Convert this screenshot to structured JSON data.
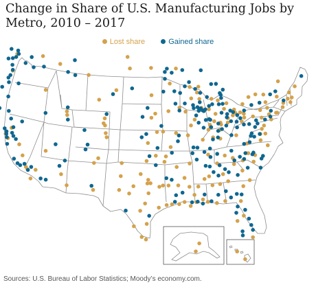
{
  "title": "Change in Share of U.S. Manufacturing Jobs by Metro, 2010 – 2017",
  "legend": {
    "lost_label": "Lost share",
    "gained_label": "Gained share"
  },
  "colors": {
    "lost": "#d4a24c",
    "gained": "#0f6790",
    "state_border": "#8c8c8c",
    "land": "#ffffff"
  },
  "source": "Sources: U.S. Bureau of Labor Statistics; Moody’s economy.com.",
  "map": {
    "projection": "albers-usa",
    "insets": [
      "alaska",
      "hawaii"
    ]
  },
  "metros": {
    "lost": [
      [
        -122.3,
        47.6
      ],
      [
        -122.7,
        45.5
      ],
      [
        -122.4,
        37.8
      ],
      [
        -121.9,
        37.3
      ],
      [
        -121.5,
        38.6
      ],
      [
        -119.8,
        36.7
      ],
      [
        -119.0,
        35.4
      ],
      [
        -118.2,
        34.05
      ],
      [
        -117.9,
        33.8
      ],
      [
        -117.2,
        32.7
      ],
      [
        -116.5,
        33.8
      ],
      [
        -115.1,
        36.2
      ],
      [
        -112.1,
        33.5
      ],
      [
        -111.0,
        32.2
      ],
      [
        -106.6,
        35.1
      ],
      [
        -106.5,
        31.8
      ],
      [
        -104.8,
        38.8
      ],
      [
        -105.9,
        35.7
      ],
      [
        -104.6,
        38.3
      ],
      [
        -101.8,
        35.2
      ],
      [
        -101.9,
        33.6
      ],
      [
        -102.1,
        31.9
      ],
      [
        -100.4,
        31.5
      ],
      [
        -99.7,
        32.4
      ],
      [
        -97.7,
        30.3
      ],
      [
        -98.5,
        29.4
      ],
      [
        -97.4,
        27.8
      ],
      [
        -97.5,
        25.9
      ],
      [
        -98.2,
        26.2
      ],
      [
        -99.5,
        27.5
      ],
      [
        -95.4,
        29.8
      ],
      [
        -94.1,
        30.1
      ],
      [
        -93.2,
        30.2
      ],
      [
        -92.0,
        30.2
      ],
      [
        -91.1,
        30.45
      ],
      [
        -90.1,
        29.95
      ],
      [
        -88.0,
        30.7
      ],
      [
        -89.1,
        30.4
      ],
      [
        -86.8,
        33.5
      ],
      [
        -86.3,
        32.4
      ],
      [
        -87.6,
        33.2
      ],
      [
        -84.4,
        33.7
      ],
      [
        -85.0,
        32.5
      ],
      [
        -83.6,
        32.8
      ],
      [
        -81.1,
        32.1
      ],
      [
        -81.7,
        30.3
      ],
      [
        -82.5,
        27.9
      ],
      [
        -81.4,
        28.5
      ],
      [
        -80.2,
        25.8
      ],
      [
        -84.3,
        30.4
      ],
      [
        -87.2,
        30.4
      ],
      [
        -85.7,
        30.2
      ],
      [
        -90.2,
        32.3
      ],
      [
        -92.3,
        34.75
      ],
      [
        -94.4,
        35.4
      ],
      [
        -95.9,
        36.15
      ],
      [
        -97.5,
        35.5
      ],
      [
        -97.3,
        37.7
      ],
      [
        -94.6,
        39.1
      ],
      [
        -95.7,
        39.05
      ],
      [
        -96.0,
        41.3
      ],
      [
        -96.7,
        40.8
      ],
      [
        -93.6,
        41.6
      ],
      [
        -91.6,
        42.0
      ],
      [
        -90.5,
        41.5
      ],
      [
        -93.3,
        44.97
      ],
      [
        -96.7,
        43.55
      ],
      [
        -92.1,
        46.8
      ],
      [
        -96.8,
        46.9
      ],
      [
        -100.8,
        46.8
      ],
      [
        -101.3,
        48.2
      ],
      [
        -103.2,
        44.1
      ],
      [
        -106.3,
        42.85
      ],
      [
        -108.5,
        45.8
      ],
      [
        -111.9,
        40.76
      ],
      [
        -112.0,
        41.2
      ],
      [
        -116.2,
        43.6
      ],
      [
        -114.0,
        46.9
      ],
      [
        -117.4,
        47.66
      ],
      [
        -104.99,
        39.74
      ],
      [
        -105.1,
        40.6
      ],
      [
        -105.27,
        40.0
      ],
      [
        -90.2,
        38.6
      ],
      [
        -92.3,
        38.9
      ],
      [
        -93.3,
        37.2
      ],
      [
        -89.6,
        39.8
      ],
      [
        -88.9,
        40.5
      ],
      [
        -87.6,
        41.9
      ],
      [
        -87.9,
        43.0
      ],
      [
        -89.4,
        43.1
      ],
      [
        -88.0,
        44.5
      ],
      [
        -85.7,
        42.96
      ],
      [
        -83.0,
        42.33
      ],
      [
        -84.55,
        42.73
      ],
      [
        -86.2,
        39.8
      ],
      [
        -85.1,
        41.1
      ],
      [
        -87.6,
        38.0
      ],
      [
        -85.76,
        38.25
      ],
      [
        -84.5,
        38.05
      ],
      [
        -84.5,
        39.1
      ],
      [
        -83.0,
        39.96
      ],
      [
        -81.7,
        41.5
      ],
      [
        -81.5,
        41.1
      ],
      [
        -80.65,
        41.1
      ],
      [
        -79.99,
        40.44
      ],
      [
        -80.1,
        42.1
      ],
      [
        -78.9,
        42.9
      ],
      [
        -77.6,
        43.16
      ],
      [
        -76.15,
        43.05
      ],
      [
        -73.76,
        42.65
      ],
      [
        -75.9,
        42.1
      ],
      [
        -76.88,
        40.27
      ],
      [
        -75.2,
        39.95
      ],
      [
        -75.5,
        40.6
      ],
      [
        -74.0,
        40.7
      ],
      [
        -74.2,
        40.7
      ],
      [
        -72.9,
        41.3
      ],
      [
        -72.7,
        41.8
      ],
      [
        -71.4,
        41.8
      ],
      [
        -71.06,
        42.36
      ],
      [
        -71.8,
        42.26
      ],
      [
        -70.26,
        43.66
      ],
      [
        -71.45,
        43.0
      ],
      [
        -73.2,
        44.48
      ],
      [
        -76.6,
        39.29
      ],
      [
        -77.04,
        38.9
      ],
      [
        -77.44,
        37.54
      ],
      [
        -76.29,
        36.85
      ],
      [
        -79.9,
        37.27
      ],
      [
        -80.84,
        35.23
      ],
      [
        -78.64,
        35.78
      ],
      [
        -79.8,
        36.07
      ],
      [
        -81.05,
        34.0
      ],
      [
        -82.4,
        34.85
      ],
      [
        -79.93,
        32.78
      ],
      [
        -81.65,
        38.35
      ],
      [
        -86.78,
        36.16
      ],
      [
        -90.05,
        35.15
      ],
      [
        -85.3,
        35.05
      ],
      [
        -83.9,
        35.96
      ],
      [
        -82.55,
        35.6
      ],
      [
        -89.4,
        31.3
      ],
      [
        -88.7,
        32.3
      ],
      [
        -96.8,
        32.78
      ],
      [
        -97.33,
        32.75
      ],
      [
        -97.14,
        31.55
      ],
      [
        -97.2,
        33.2
      ],
      [
        -95.3,
        32.35
      ],
      [
        -94.7,
        32.5
      ],
      [
        -93.75,
        32.5
      ],
      [
        -92.1,
        32.5
      ],
      [
        -91.0,
        33.4
      ],
      [
        -94.15,
        36.06
      ],
      [
        -98.5,
        33.9
      ],
      [
        -84.3,
        40.0
      ],
      [
        -82.9,
        40.5
      ],
      [
        -82.0,
        40.8
      ],
      [
        -80.5,
        40.0
      ],
      [
        -80.0,
        40.9
      ],
      [
        -78.4,
        40.5
      ],
      [
        -77.0,
        41.2
      ],
      [
        -75.7,
        41.4
      ],
      [
        -79.0,
        35.0
      ],
      [
        -80.2,
        36.1
      ],
      [
        -86.5,
        39.2
      ],
      [
        -85.4,
        40.2
      ],
      [
        -84.2,
        39.76
      ],
      [
        -83.5,
        41.66
      ],
      [
        -86.25,
        41.7
      ],
      [
        -88.3,
        43.8
      ],
      [
        -89.6,
        44.5
      ],
      [
        -76.5,
        38.3
      ],
      [
        -77.4,
        38.3
      ],
      [
        -155.6,
        19.7
      ],
      [
        -157.85,
        21.3
      ],
      [
        -150.0,
        61.2
      ],
      [
        -147.7,
        64.84
      ]
    ],
    "gained": [
      [
        -122.5,
        48.75
      ],
      [
        -122.2,
        48.0
      ],
      [
        -122.4,
        47.2
      ],
      [
        -123.0,
        47.0
      ],
      [
        -122.9,
        46.2
      ],
      [
        -123.0,
        44.94
      ],
      [
        -123.1,
        44.05
      ],
      [
        -121.3,
        44.05
      ],
      [
        -122.85,
        42.33
      ],
      [
        -124.2,
        43.4
      ],
      [
        -124.1,
        40.8
      ],
      [
        -122.4,
        40.6
      ],
      [
        -121.8,
        39.7
      ],
      [
        -122.26,
        37.8
      ],
      [
        -122.7,
        38.44
      ],
      [
        -122.3,
        38.1
      ],
      [
        -121.3,
        38.0
      ],
      [
        -121.0,
        37.64
      ],
      [
        -120.5,
        37.3
      ],
      [
        -121.9,
        36.6
      ],
      [
        -120.4,
        34.9
      ],
      [
        -119.7,
        34.4
      ],
      [
        -119.2,
        34.2
      ],
      [
        -117.3,
        34.1
      ],
      [
        -117.8,
        33.7
      ],
      [
        -118.5,
        34.4
      ],
      [
        -115.5,
        32.8
      ],
      [
        -114.6,
        32.7
      ],
      [
        -112.5,
        34.5
      ],
      [
        -111.65,
        35.2
      ],
      [
        -106.8,
        32.3
      ],
      [
        -108.2,
        36.7
      ],
      [
        -113.5,
        37.1
      ],
      [
        -111.7,
        40.2
      ],
      [
        -111.9,
        41.7
      ],
      [
        -119.8,
        39.5
      ],
      [
        -115.8,
        40.8
      ],
      [
        -104.8,
        41.14
      ],
      [
        -108.6,
        39.06
      ],
      [
        -107.9,
        37.3
      ],
      [
        -112.4,
        46.0
      ],
      [
        -111.3,
        47.5
      ],
      [
        -111.0,
        45.68
      ],
      [
        -117.0,
        46.4
      ],
      [
        -118.9,
        46.2
      ],
      [
        -119.5,
        47.4
      ],
      [
        -123.5,
        48.1
      ],
      [
        -122.7,
        45.6
      ],
      [
        -120.5,
        46.6
      ],
      [
        -100.3,
        44.37
      ],
      [
        -103.8,
        43.6
      ],
      [
        -97.4,
        42.0
      ],
      [
        -98.3,
        40.9
      ],
      [
        -98.4,
        38.4
      ],
      [
        -97.6,
        38.8
      ],
      [
        -94.9,
        39.8
      ],
      [
        -95.6,
        37.1
      ],
      [
        -97.0,
        36.1
      ],
      [
        -95.9,
        35.0
      ],
      [
        -100.9,
        29.4
      ],
      [
        -94.1,
        33.4
      ],
      [
        -92.5,
        31.3
      ],
      [
        -91.4,
        31.6
      ],
      [
        -89.3,
        37.1
      ],
      [
        -88.6,
        37.05
      ],
      [
        -87.35,
        39.47
      ],
      [
        -88.2,
        40.1
      ],
      [
        -89.0,
        41.9
      ],
      [
        -89.1,
        42.27
      ],
      [
        -88.3,
        42.0
      ],
      [
        -87.85,
        42.6
      ],
      [
        -87.7,
        43.75
      ],
      [
        -88.6,
        44.25
      ],
      [
        -87.4,
        46.5
      ],
      [
        -84.7,
        44.76
      ],
      [
        -85.6,
        44.76
      ],
      [
        -86.5,
        43.2
      ],
      [
        -85.6,
        42.29
      ],
      [
        -84.4,
        42.25
      ],
      [
        -83.7,
        42.28
      ],
      [
        -83.9,
        43.0
      ],
      [
        -83.95,
        43.4
      ],
      [
        -84.1,
        43.6
      ],
      [
        -83.5,
        44.0
      ],
      [
        -86.3,
        40.5
      ],
      [
        -86.1,
        40.4
      ],
      [
        -86.9,
        40.4
      ],
      [
        -85.8,
        38.0
      ],
      [
        -84.9,
        38.2
      ],
      [
        -86.4,
        36.9
      ],
      [
        -87.4,
        36.5
      ],
      [
        -86.4,
        35.85
      ],
      [
        -88.8,
        35.6
      ],
      [
        -89.5,
        36.4
      ],
      [
        -85.2,
        36.2
      ],
      [
        -82.7,
        36.5
      ],
      [
        -83.3,
        39.6
      ],
      [
        -82.5,
        38.4
      ],
      [
        -81.4,
        39.3
      ],
      [
        -80.7,
        40.4
      ],
      [
        -80.15,
        39.6
      ],
      [
        -79.2,
        39.6
      ],
      [
        -77.7,
        39.6
      ],
      [
        -78.2,
        39.2
      ],
      [
        -79.1,
        38.15
      ],
      [
        -78.9,
        38.45
      ],
      [
        -77.5,
        38.3
      ],
      [
        -79.4,
        37.4
      ],
      [
        -78.5,
        38.03
      ],
      [
        -80.4,
        37.23
      ],
      [
        -79.1,
        35.9
      ],
      [
        -80.3,
        36.1
      ],
      [
        -81.3,
        35.7
      ],
      [
        -82.3,
        35.3
      ],
      [
        -80.6,
        35.4
      ],
      [
        -77.9,
        34.2
      ],
      [
        -77.3,
        35.6
      ],
      [
        -77.6,
        35.3
      ],
      [
        -78.9,
        36.1
      ],
      [
        -80.1,
        34.3
      ],
      [
        -81.9,
        33.5
      ],
      [
        -83.4,
        33.9
      ],
      [
        -84.9,
        34.8
      ],
      [
        -84.0,
        34.3
      ],
      [
        -85.2,
        33.55
      ],
      [
        -86.6,
        34.7
      ],
      [
        -87.3,
        34.8
      ],
      [
        -86.0,
        34.0
      ],
      [
        -85.4,
        31.2
      ],
      [
        -87.7,
        31.3
      ],
      [
        -88.05,
        30.2
      ],
      [
        -81.1,
        29.2
      ],
      [
        -80.6,
        28.1
      ],
      [
        -80.1,
        26.7
      ],
      [
        -80.3,
        27.3
      ],
      [
        -81.8,
        26.6
      ],
      [
        -81.8,
        26.1
      ],
      [
        -82.3,
        29.65
      ],
      [
        -82.6,
        28.9
      ],
      [
        -84.1,
        31.6
      ],
      [
        -83.3,
        30.8
      ],
      [
        -82.3,
        31.2
      ],
      [
        -81.5,
        31.1
      ],
      [
        -86.6,
        30.45
      ],
      [
        -88.9,
        30.45
      ],
      [
        -89.85,
        30.4
      ],
      [
        -93.2,
        33.2
      ],
      [
        -93.1,
        36.5
      ],
      [
        -92.0,
        37.9
      ],
      [
        -91.8,
        38.6
      ],
      [
        -90.6,
        42.5
      ],
      [
        -91.6,
        41.65
      ],
      [
        -92.3,
        42.5
      ],
      [
        -92.47,
        44.02
      ],
      [
        -91.4,
        43.8
      ],
      [
        -90.5,
        44.6
      ],
      [
        -94.2,
        45.56
      ],
      [
        -94.5,
        44.0
      ],
      [
        -94.2,
        46.4
      ],
      [
        -92.9,
        46.3
      ],
      [
        -90.9,
        46.6
      ],
      [
        -89.7,
        45.1
      ],
      [
        -93.8,
        46.8
      ],
      [
        -87.75,
        41.85
      ],
      [
        -88.1,
        41.55
      ],
      [
        -88.0,
        41.7
      ],
      [
        -87.4,
        41.6
      ],
      [
        -87.2,
        41.5
      ],
      [
        -86.9,
        41.7
      ],
      [
        -86.2,
        42.1
      ],
      [
        -84.0,
        41.2
      ],
      [
        -83.0,
        41.0
      ],
      [
        -82.4,
        41.4
      ],
      [
        -81.9,
        41.2
      ],
      [
        -81.2,
        40.8
      ],
      [
        -81.4,
        40.0
      ],
      [
        -82.4,
        40.1
      ],
      [
        -83.1,
        40.6
      ],
      [
        -84.7,
        39.9
      ],
      [
        -84.1,
        39.2
      ],
      [
        -84.8,
        39.0
      ],
      [
        -75.3,
        40.3
      ],
      [
        -78.5,
        41.9
      ],
      [
        -79.9,
        41.3
      ],
      [
        -76.3,
        40.0
      ],
      [
        -77.9,
        40.0
      ],
      [
        -75.1,
        41.0
      ],
      [
        -72.6,
        42.1
      ],
      [
        -73.9,
        43.3
      ],
      [
        -74.9,
        43.0
      ],
      [
        -77.0,
        42.1
      ],
      [
        -68.8,
        44.8
      ],
      [
        -122.0,
        47.6
      ],
      [
        -123.8,
        46.9
      ],
      [
        -122.1,
        37.4
      ],
      [
        -86.0,
        39.5
      ],
      [
        -88.6,
        41.0
      ],
      [
        -92.7,
        30.5
      ],
      [
        -97.0,
        28.8
      ],
      [
        -123.3,
        44.6
      ],
      [
        -121.2,
        38.7
      ]
    ]
  }
}
